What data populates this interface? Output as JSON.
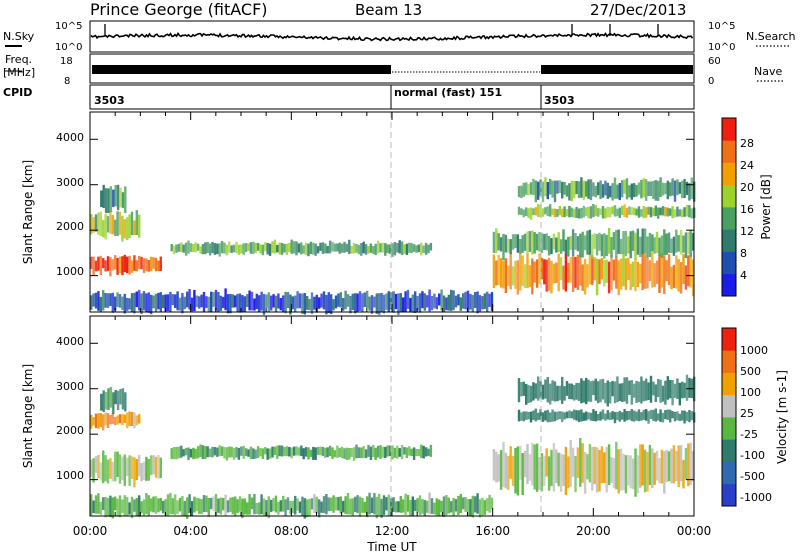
{
  "header": {
    "station": "Prince George (fitACF)",
    "beam": "Beam 13",
    "date": "27/Dec/2013"
  },
  "top_panels": {
    "nsky_label": "N.Sky",
    "nsearch_label": "N.Search",
    "freq_label_1": "Freq.",
    "freq_label_2": "[MHz]",
    "nave_label": "Nave",
    "cpid_label": "CPID",
    "noise_ticks": [
      "10^5",
      "10^0"
    ],
    "freq_ticks": [
      "18",
      "8"
    ],
    "nave_ticks": [
      "60",
      "0"
    ],
    "cpid_segments": [
      {
        "label": "3503",
        "start_h": 0,
        "end_h": 12
      },
      {
        "label": "normal (fast) 151",
        "start_h": 12,
        "end_h": 18
      },
      {
        "label": "3503",
        "start_h": 18,
        "end_h": 24
      }
    ]
  },
  "axes": {
    "xlabel": "Time UT",
    "x_ticks": [
      "00:00",
      "04:00",
      "08:00",
      "12:00",
      "16:00",
      "20:00",
      "00:00"
    ],
    "ylabel": "Slant Range [km]",
    "y_ticks": [
      "1000",
      "2000",
      "3000",
      "4000"
    ]
  },
  "colorbars": {
    "power": {
      "label": "Power [dB]",
      "ticks": [
        "4",
        "8",
        "12",
        "16",
        "20",
        "24",
        "28"
      ],
      "colors": [
        "#1c1ce8",
        "#1e4fb0",
        "#2f7a6a",
        "#4aa060",
        "#9bd22c",
        "#f0a000",
        "#f07018",
        "#ee2010"
      ]
    },
    "velocity": {
      "label": "Velocity [m s-1]",
      "ticks": [
        "1000",
        "500",
        "100",
        "25",
        "-25",
        "-100",
        "-500",
        "-1000"
      ],
      "colors": [
        "#2a40c8",
        "#2f6ab0",
        "#2f7a6a",
        "#5ab840",
        "#c0c0c0",
        "#f0a000",
        "#f07018",
        "#ee2010"
      ]
    }
  },
  "chart_data": [
    {
      "type": "heatmap",
      "title": "Power",
      "xlabel": "Time UT",
      "ylabel": "Slant Range [km]",
      "xlim": [
        0,
        24
      ],
      "ylim": [
        200,
        4600
      ],
      "colorbar_label": "Power [dB]",
      "regions": [
        {
          "t_start": 0.0,
          "t_end": 2.8,
          "range_center": 1250,
          "range_halfwidth": 180,
          "power_db": 27
        },
        {
          "t_start": 0.0,
          "t_end": 2.0,
          "range_center": 2100,
          "range_halfwidth": 250,
          "power_db": 16
        },
        {
          "t_start": 0.4,
          "t_end": 1.4,
          "range_center": 2700,
          "range_halfwidth": 250,
          "power_db": 12
        },
        {
          "t_start": 3.2,
          "t_end": 13.5,
          "range_center": 1600,
          "range_halfwidth": 130,
          "power_db": 14
        },
        {
          "t_start": 0.0,
          "t_end": 16.0,
          "range_center": 420,
          "range_halfwidth": 200,
          "power_db": 6
        },
        {
          "t_start": 16.0,
          "t_end": 24.0,
          "range_center": 1050,
          "range_halfwidth": 350,
          "power_db": 24
        },
        {
          "t_start": 16.0,
          "t_end": 24.0,
          "range_center": 1700,
          "range_halfwidth": 250,
          "power_db": 14
        },
        {
          "t_start": 17.0,
          "t_end": 24.0,
          "range_center": 2400,
          "range_halfwidth": 120,
          "power_db": 16
        },
        {
          "t_start": 17.0,
          "t_end": 24.0,
          "range_center": 2900,
          "range_halfwidth": 200,
          "power_db": 12
        }
      ]
    },
    {
      "type": "heatmap",
      "title": "Velocity",
      "xlabel": "Time UT",
      "ylabel": "Slant Range [km]",
      "xlim": [
        0,
        24
      ],
      "ylim": [
        200,
        4600
      ],
      "colorbar_label": "Velocity [m s-1]",
      "regions": [
        {
          "t_start": 0.0,
          "t_end": 2.8,
          "range_center": 1250,
          "range_halfwidth": 300,
          "velocity": 0
        },
        {
          "t_start": 0.0,
          "t_end": 2.0,
          "range_center": 2300,
          "range_halfwidth": 150,
          "velocity": 80
        },
        {
          "t_start": 0.4,
          "t_end": 1.4,
          "range_center": 2750,
          "range_halfwidth": 250,
          "velocity": -150
        },
        {
          "t_start": 3.2,
          "t_end": 13.5,
          "range_center": 1600,
          "range_halfwidth": 130,
          "velocity": -100
        },
        {
          "t_start": 0.0,
          "t_end": 16.0,
          "range_center": 420,
          "range_halfwidth": 200,
          "velocity": -80
        },
        {
          "t_start": 16.0,
          "t_end": 24.0,
          "range_center": 1250,
          "range_halfwidth": 450,
          "velocity": 0
        },
        {
          "t_start": 17.0,
          "t_end": 24.0,
          "range_center": 2400,
          "range_halfwidth": 120,
          "velocity": -300
        },
        {
          "t_start": 17.0,
          "t_end": 24.0,
          "range_center": 2950,
          "range_halfwidth": 250,
          "velocity": -200
        }
      ]
    }
  ]
}
